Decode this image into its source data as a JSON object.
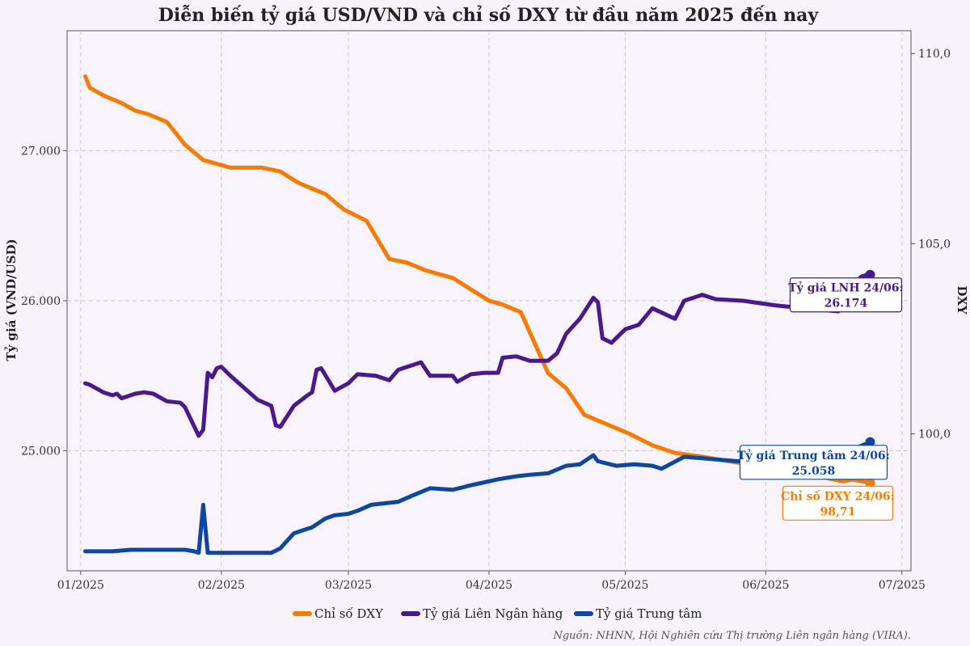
{
  "chart_data": {
    "type": "line",
    "title": "Diễn biến tỷ giá USD/VND và chỉ số DXY từ đầu năm 2025 đến nay",
    "ylabel_left": "Tỷ giá (VND/USD)",
    "ylabel_right": "DXY",
    "x_range": [
      "2024-12-29",
      "2025-07-03"
    ],
    "x_ticks": [
      "2025-01-01",
      "2025-02-01",
      "2025-03-01",
      "2025-04-01",
      "2025-05-01",
      "2025-06-01",
      "2025-07-01"
    ],
    "x_tick_labels": [
      "01/2025",
      "02/2025",
      "03/2025",
      "04/2025",
      "05/2025",
      "06/2025",
      "07/2025"
    ],
    "y_left_range": [
      24200,
      27800
    ],
    "y_left_ticks": [
      25000,
      26000,
      27000
    ],
    "y_left_tick_labels": [
      "25.000",
      "26.000",
      "27.000"
    ],
    "y_right_range": [
      96.4,
      110.6
    ],
    "y_right_ticks": [
      100,
      105,
      110
    ],
    "y_right_tick_labels": [
      "100,0",
      "105,0",
      "110,0"
    ],
    "grid": true,
    "legend_position": "bottom",
    "series": [
      {
        "name": "Chỉ số DXY",
        "axis": "right",
        "color": "#f57c00",
        "points": [
          [
            "2025-01-02",
            109.4
          ],
          [
            "2025-01-03",
            109.1
          ],
          [
            "2025-01-06",
            108.9
          ],
          [
            "2025-01-08",
            108.8
          ],
          [
            "2025-01-10",
            108.7
          ],
          [
            "2025-01-13",
            108.5
          ],
          [
            "2025-01-16",
            108.4
          ],
          [
            "2025-01-20",
            108.2
          ],
          [
            "2025-01-24",
            107.6
          ],
          [
            "2025-01-28",
            107.2
          ],
          [
            "2025-02-03",
            107.0
          ],
          [
            "2025-02-10",
            107.0
          ],
          [
            "2025-02-14",
            106.9
          ],
          [
            "2025-02-18",
            106.6
          ],
          [
            "2025-02-24",
            106.3
          ],
          [
            "2025-02-28",
            105.9
          ],
          [
            "2025-03-05",
            105.6
          ],
          [
            "2025-03-07",
            105.2
          ],
          [
            "2025-03-10",
            104.6
          ],
          [
            "2025-03-14",
            104.5
          ],
          [
            "2025-03-18",
            104.3
          ],
          [
            "2025-03-24",
            104.1
          ],
          [
            "2025-03-28",
            103.8
          ],
          [
            "2025-04-01",
            103.5
          ],
          [
            "2025-04-04",
            103.4
          ],
          [
            "2025-04-08",
            103.2
          ],
          [
            "2025-04-11",
            102.4
          ],
          [
            "2025-04-14",
            101.6
          ],
          [
            "2025-04-18",
            101.2
          ],
          [
            "2025-04-22",
            100.5
          ],
          [
            "2025-04-28",
            100.2
          ],
          [
            "2025-05-02",
            100.0
          ],
          [
            "2025-05-07",
            99.7
          ],
          [
            "2025-05-12",
            99.5
          ],
          [
            "2025-05-18",
            99.4
          ],
          [
            "2025-05-23",
            99.3
          ],
          [
            "2025-05-28",
            99.2
          ],
          [
            "2025-06-03",
            99.1
          ],
          [
            "2025-06-08",
            99.0
          ],
          [
            "2025-06-12",
            98.9
          ],
          [
            "2025-06-16",
            98.8
          ],
          [
            "2025-06-18",
            98.75
          ],
          [
            "2025-06-20",
            98.8
          ],
          [
            "2025-06-24",
            98.71
          ]
        ]
      },
      {
        "name": "Tỷ giá Liên Ngân hàng",
        "axis": "left",
        "color": "#4a1a8c",
        "points": [
          [
            "2025-01-02",
            25450
          ],
          [
            "2025-01-03",
            25440
          ],
          [
            "2025-01-06",
            25390
          ],
          [
            "2025-01-08",
            25370
          ],
          [
            "2025-01-09",
            25380
          ],
          [
            "2025-01-10",
            25350
          ],
          [
            "2025-01-13",
            25380
          ],
          [
            "2025-01-15",
            25390
          ],
          [
            "2025-01-17",
            25380
          ],
          [
            "2025-01-20",
            25330
          ],
          [
            "2025-01-23",
            25320
          ],
          [
            "2025-01-24",
            25290
          ],
          [
            "2025-01-27",
            25100
          ],
          [
            "2025-01-28",
            25140
          ],
          [
            "2025-01-29",
            25520
          ],
          [
            "2025-01-30",
            25490
          ],
          [
            "2025-01-31",
            25550
          ],
          [
            "2025-02-01",
            25560
          ],
          [
            "2025-02-03",
            25500
          ],
          [
            "2025-02-06",
            25420
          ],
          [
            "2025-02-09",
            25340
          ],
          [
            "2025-02-12",
            25300
          ],
          [
            "2025-02-13",
            25170
          ],
          [
            "2025-02-14",
            25160
          ],
          [
            "2025-02-17",
            25300
          ],
          [
            "2025-02-20",
            25370
          ],
          [
            "2025-02-21",
            25390
          ],
          [
            "2025-02-22",
            25540
          ],
          [
            "2025-02-23",
            25550
          ],
          [
            "2025-02-26",
            25400
          ],
          [
            "2025-03-01",
            25450
          ],
          [
            "2025-03-03",
            25510
          ],
          [
            "2025-03-07",
            25500
          ],
          [
            "2025-03-10",
            25470
          ],
          [
            "2025-03-12",
            25540
          ],
          [
            "2025-03-17",
            25590
          ],
          [
            "2025-03-19",
            25500
          ],
          [
            "2025-03-24",
            25500
          ],
          [
            "2025-03-25",
            25460
          ],
          [
            "2025-03-28",
            25510
          ],
          [
            "2025-03-31",
            25520
          ],
          [
            "2025-04-03",
            25520
          ],
          [
            "2025-04-04",
            25620
          ],
          [
            "2025-04-07",
            25630
          ],
          [
            "2025-04-10",
            25600
          ],
          [
            "2025-04-14",
            25600
          ],
          [
            "2025-04-16",
            25650
          ],
          [
            "2025-04-18",
            25780
          ],
          [
            "2025-04-21",
            25880
          ],
          [
            "2025-04-24",
            26020
          ],
          [
            "2025-04-25",
            25990
          ],
          [
            "2025-04-26",
            25750
          ],
          [
            "2025-04-28",
            25720
          ],
          [
            "2025-05-01",
            25810
          ],
          [
            "2025-05-04",
            25840
          ],
          [
            "2025-05-07",
            25950
          ],
          [
            "2025-05-12",
            25880
          ],
          [
            "2025-05-14",
            26000
          ],
          [
            "2025-05-18",
            26040
          ],
          [
            "2025-05-21",
            26010
          ],
          [
            "2025-05-27",
            26000
          ],
          [
            "2025-06-03",
            25970
          ],
          [
            "2025-06-06",
            25960
          ],
          [
            "2025-06-10",
            25970
          ],
          [
            "2025-06-13",
            25940
          ],
          [
            "2025-06-17",
            25930
          ],
          [
            "2025-06-18",
            25970
          ],
          [
            "2025-06-19",
            26040
          ],
          [
            "2025-06-20",
            26110
          ],
          [
            "2025-06-21",
            26120
          ],
          [
            "2025-06-22",
            26160
          ],
          [
            "2025-06-23",
            26170
          ],
          [
            "2025-06-24",
            26174
          ]
        ]
      },
      {
        "name": "Tỷ giá Trung tâm",
        "axis": "left",
        "color": "#0d47a1",
        "points": [
          [
            "2025-01-02",
            24330
          ],
          [
            "2025-01-05",
            24330
          ],
          [
            "2025-01-08",
            24330
          ],
          [
            "2025-01-12",
            24340
          ],
          [
            "2025-01-16",
            24340
          ],
          [
            "2025-01-20",
            24340
          ],
          [
            "2025-01-24",
            24340
          ],
          [
            "2025-01-26",
            24330
          ],
          [
            "2025-01-27",
            24320
          ],
          [
            "2025-01-28",
            24640
          ],
          [
            "2025-01-29",
            24320
          ],
          [
            "2025-02-03",
            24320
          ],
          [
            "2025-02-07",
            24320
          ],
          [
            "2025-02-10",
            24320
          ],
          [
            "2025-02-12",
            24320
          ],
          [
            "2025-02-14",
            24350
          ],
          [
            "2025-02-17",
            24450
          ],
          [
            "2025-02-21",
            24490
          ],
          [
            "2025-02-24",
            24550
          ],
          [
            "2025-02-26",
            24570
          ],
          [
            "2025-03-01",
            24580
          ],
          [
            "2025-03-03",
            24600
          ],
          [
            "2025-03-06",
            24640
          ],
          [
            "2025-03-09",
            24650
          ],
          [
            "2025-03-12",
            24660
          ],
          [
            "2025-03-15",
            24700
          ],
          [
            "2025-03-19",
            24750
          ],
          [
            "2025-03-24",
            24740
          ],
          [
            "2025-03-28",
            24770
          ],
          [
            "2025-03-31",
            24790
          ],
          [
            "2025-04-03",
            24810
          ],
          [
            "2025-04-07",
            24830
          ],
          [
            "2025-04-10",
            24840
          ],
          [
            "2025-04-14",
            24850
          ],
          [
            "2025-04-18",
            24900
          ],
          [
            "2025-04-21",
            24910
          ],
          [
            "2025-04-24",
            24970
          ],
          [
            "2025-04-25",
            24930
          ],
          [
            "2025-04-29",
            24900
          ],
          [
            "2025-05-03",
            24910
          ],
          [
            "2025-05-07",
            24900
          ],
          [
            "2025-05-09",
            24880
          ],
          [
            "2025-05-14",
            24960
          ],
          [
            "2025-05-18",
            24950
          ],
          [
            "2025-05-22",
            24940
          ],
          [
            "2025-05-26",
            24930
          ],
          [
            "2025-05-30",
            24940
          ],
          [
            "2025-06-03",
            24950
          ],
          [
            "2025-06-07",
            24960
          ],
          [
            "2025-06-10",
            24950
          ],
          [
            "2025-06-13",
            24960
          ],
          [
            "2025-06-16",
            24970
          ],
          [
            "2025-06-18",
            24980
          ],
          [
            "2025-06-19",
            24990
          ],
          [
            "2025-06-21",
            25020
          ],
          [
            "2025-06-24",
            25058
          ]
        ]
      }
    ],
    "annotations": [
      {
        "series": "Tỷ giá Liên Ngân hàng",
        "title": "Tỷ giá LNH 24/06:",
        "value": "26.174",
        "color": "#4a1a8c"
      },
      {
        "series": "Tỷ giá Trung tâm",
        "title": "Tỷ giá Trung tâm 24/06:",
        "value": "25.058",
        "color": "#0d47a1"
      },
      {
        "series": "Chỉ số DXY",
        "title": "Chỉ số DXY 24/06:",
        "value": "98,71",
        "color": "#f57c00"
      }
    ],
    "source": "Nguồn: NHNN, Hội Nghiên cứu Thị trường Liên ngân hàng (VIRA)."
  }
}
